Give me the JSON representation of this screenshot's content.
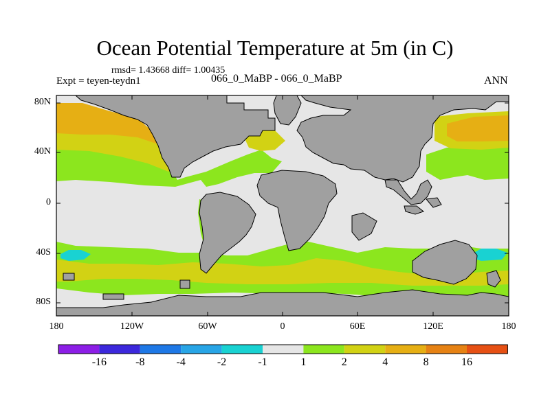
{
  "title": "Ocean Potential Temperature at 5m (in C)",
  "stats": "rmsd= 1.43668 diff= 1.00435",
  "expt": "Expt = teyen-teydn1",
  "expname": "066_0_MaBP - 066_0_MaBP",
  "season": "ANN",
  "lat_ticks": [
    "80N",
    "40N",
    "0",
    "40S",
    "80S"
  ],
  "lon_ticks": [
    "180",
    "120W",
    "60W",
    "0",
    "60E",
    "120E",
    "180"
  ],
  "colorbar": {
    "colors": [
      "#8c1ee6",
      "#3c28dc",
      "#1e78e6",
      "#28a5e6",
      "#19d2d2",
      "#e6e6e6",
      "#8ce61e",
      "#d2d214",
      "#e6af14",
      "#e68214",
      "#e65014",
      "#e61e0a"
    ],
    "labels": [
      "-16",
      "-8",
      "-4",
      "-2",
      "-1",
      "1",
      "2",
      "4",
      "8",
      "16"
    ]
  },
  "map_colors": {
    "land": "#a0a0a0",
    "ocean": "#e6e6e6",
    "green": "#8ce61e",
    "yellow": "#d2d214",
    "orange": "#e6af14",
    "cyan": "#19d2d2",
    "coast": "#000000"
  }
}
